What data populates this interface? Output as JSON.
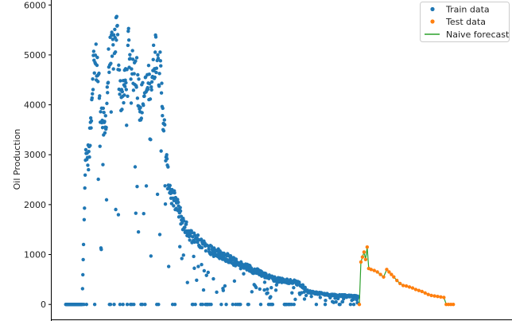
{
  "chart_data": {
    "type": "scatter",
    "title": "",
    "xlabel": "",
    "ylabel": "Oil Production",
    "ylim": [
      -300,
      6100
    ],
    "xlim": [
      -180,
      5700
    ],
    "yticks": [
      0,
      1000,
      2000,
      3000,
      4000,
      5000,
      6000
    ],
    "grid": false,
    "legend": {
      "position": "top-right"
    },
    "colors": {
      "train": "#1f77b4",
      "test": "#ff7f0e",
      "forecast": "#2ca02c",
      "axis": "#000000"
    },
    "series": [
      {
        "name": "Train data",
        "kind": "scatter",
        "envelope": [
          [
            0,
            0
          ],
          [
            210,
            0
          ],
          [
            250,
            3050
          ],
          [
            300,
            3150
          ],
          [
            350,
            5050
          ],
          [
            400,
            5100
          ],
          [
            450,
            4050
          ],
          [
            500,
            3600
          ],
          [
            550,
            5100
          ],
          [
            600,
            5300
          ],
          [
            650,
            5800
          ],
          [
            700,
            4400
          ],
          [
            750,
            4500
          ],
          [
            800,
            5500
          ],
          [
            850,
            4900
          ],
          [
            900,
            5000
          ],
          [
            950,
            4200
          ],
          [
            1000,
            4400
          ],
          [
            1050,
            4600
          ],
          [
            1100,
            4800
          ],
          [
            1150,
            5400
          ],
          [
            1200,
            5000
          ],
          [
            1250,
            3900
          ],
          [
            1300,
            2700
          ],
          [
            1350,
            2300
          ],
          [
            1400,
            2150
          ],
          [
            1450,
            1950
          ],
          [
            1500,
            1700
          ],
          [
            1600,
            1450
          ],
          [
            1700,
            1350
          ],
          [
            1800,
            1200
          ],
          [
            1900,
            1100
          ],
          [
            2000,
            1050
          ],
          [
            2100,
            950
          ],
          [
            2200,
            850
          ],
          [
            2300,
            800
          ],
          [
            2400,
            720
          ],
          [
            2500,
            650
          ],
          [
            2600,
            570
          ],
          [
            2700,
            520
          ],
          [
            2800,
            500
          ],
          [
            2900,
            480
          ],
          [
            3000,
            420
          ],
          [
            3100,
            270
          ],
          [
            3200,
            240
          ],
          [
            3300,
            220
          ],
          [
            3400,
            200
          ],
          [
            3500,
            190
          ],
          [
            3600,
            180
          ],
          [
            3700,
            170
          ],
          [
            3740,
            160
          ]
        ]
      },
      {
        "name": "Test data",
        "kind": "scatter",
        "points": [
          [
            3750,
            0
          ],
          [
            3770,
            850
          ],
          [
            3790,
            950
          ],
          [
            3810,
            1050
          ],
          [
            3830,
            900
          ],
          [
            3850,
            1150
          ],
          [
            3870,
            720
          ],
          [
            3900,
            700
          ],
          [
            3940,
            680
          ],
          [
            3980,
            650
          ],
          [
            4020,
            600
          ],
          [
            4060,
            550
          ],
          [
            4100,
            700
          ],
          [
            4130,
            650
          ],
          [
            4160,
            600
          ],
          [
            4190,
            550
          ],
          [
            4230,
            480
          ],
          [
            4270,
            420
          ],
          [
            4310,
            380
          ],
          [
            4350,
            370
          ],
          [
            4390,
            350
          ],
          [
            4430,
            330
          ],
          [
            4470,
            300
          ],
          [
            4510,
            280
          ],
          [
            4550,
            260
          ],
          [
            4590,
            230
          ],
          [
            4630,
            200
          ],
          [
            4670,
            180
          ],
          [
            4710,
            170
          ],
          [
            4750,
            160
          ],
          [
            4790,
            150
          ],
          [
            4830,
            140
          ],
          [
            4860,
            0
          ],
          [
            4890,
            0
          ],
          [
            4920,
            0
          ],
          [
            4950,
            0
          ]
        ]
      },
      {
        "name": "Naive forecast",
        "kind": "line",
        "points": [
          [
            3750,
            0
          ],
          [
            3770,
            850
          ],
          [
            3790,
            950
          ],
          [
            3810,
            1050
          ],
          [
            3830,
            900
          ],
          [
            3850,
            1150
          ],
          [
            3870,
            720
          ],
          [
            3900,
            700
          ],
          [
            3940,
            680
          ],
          [
            3980,
            650
          ],
          [
            4020,
            600
          ],
          [
            4060,
            550
          ],
          [
            4100,
            700
          ],
          [
            4130,
            650
          ],
          [
            4160,
            600
          ],
          [
            4190,
            550
          ],
          [
            4230,
            480
          ],
          [
            4270,
            420
          ],
          [
            4310,
            380
          ],
          [
            4350,
            370
          ],
          [
            4390,
            350
          ],
          [
            4430,
            330
          ],
          [
            4470,
            300
          ],
          [
            4510,
            280
          ],
          [
            4550,
            260
          ],
          [
            4590,
            230
          ],
          [
            4630,
            200
          ],
          [
            4670,
            180
          ],
          [
            4710,
            170
          ],
          [
            4750,
            160
          ],
          [
            4790,
            150
          ],
          [
            4830,
            140
          ],
          [
            4860,
            0
          ],
          [
            4890,
            0
          ],
          [
            4920,
            0
          ],
          [
            4950,
            0
          ]
        ]
      }
    ]
  }
}
